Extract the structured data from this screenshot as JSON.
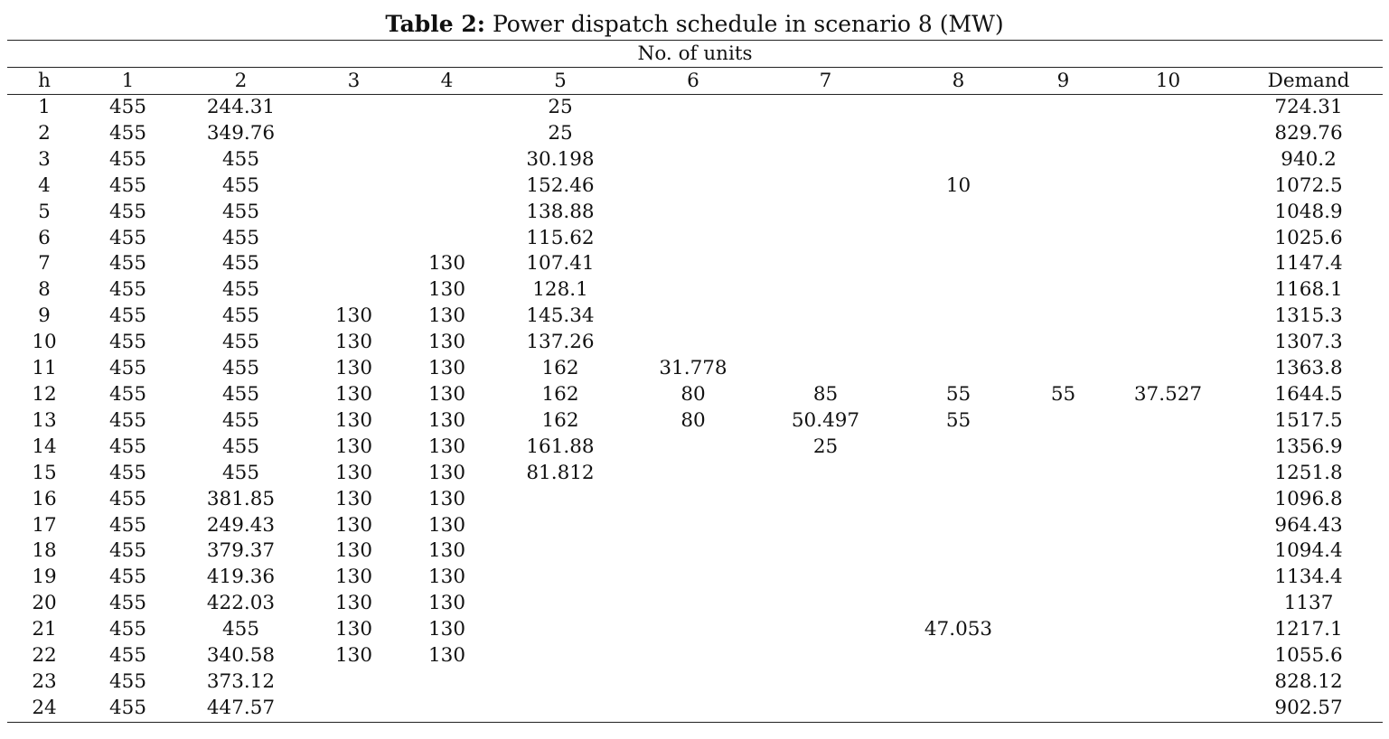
{
  "caption": {
    "label": "Table 2:",
    "text": " Power dispatch schedule in scenario 8 (MW)"
  },
  "table": {
    "group_header": "No. of units",
    "columns": [
      "h",
      "1",
      "2",
      "3",
      "4",
      "5",
      "6",
      "7",
      "8",
      "9",
      "10",
      "Demand"
    ],
    "rows": [
      [
        "1",
        "455",
        "244.31",
        "",
        "",
        "25",
        "",
        "",
        "",
        "",
        "",
        "724.31"
      ],
      [
        "2",
        "455",
        "349.76",
        "",
        "",
        "25",
        "",
        "",
        "",
        "",
        "",
        "829.76"
      ],
      [
        "3",
        "455",
        "455",
        "",
        "",
        "30.198",
        "",
        "",
        "",
        "",
        "",
        "940.2"
      ],
      [
        "4",
        "455",
        "455",
        "",
        "",
        "152.46",
        "",
        "",
        "10",
        "",
        "",
        "1072.5"
      ],
      [
        "5",
        "455",
        "455",
        "",
        "",
        "138.88",
        "",
        "",
        "",
        "",
        "",
        "1048.9"
      ],
      [
        "6",
        "455",
        "455",
        "",
        "",
        "115.62",
        "",
        "",
        "",
        "",
        "",
        "1025.6"
      ],
      [
        "7",
        "455",
        "455",
        "",
        "130",
        "107.41",
        "",
        "",
        "",
        "",
        "",
        "1147.4"
      ],
      [
        "8",
        "455",
        "455",
        "",
        "130",
        "128.1",
        "",
        "",
        "",
        "",
        "",
        "1168.1"
      ],
      [
        "9",
        "455",
        "455",
        "130",
        "130",
        "145.34",
        "",
        "",
        "",
        "",
        "",
        "1315.3"
      ],
      [
        "10",
        "455",
        "455",
        "130",
        "130",
        "137.26",
        "",
        "",
        "",
        "",
        "",
        "1307.3"
      ],
      [
        "11",
        "455",
        "455",
        "130",
        "130",
        "162",
        "31.778",
        "",
        "",
        "",
        "",
        "1363.8"
      ],
      [
        "12",
        "455",
        "455",
        "130",
        "130",
        "162",
        "80",
        "85",
        "55",
        "55",
        "37.527",
        "1644.5"
      ],
      [
        "13",
        "455",
        "455",
        "130",
        "130",
        "162",
        "80",
        "50.497",
        "55",
        "",
        "",
        "1517.5"
      ],
      [
        "14",
        "455",
        "455",
        "130",
        "130",
        "161.88",
        "",
        "25",
        "",
        "",
        "",
        "1356.9"
      ],
      [
        "15",
        "455",
        "455",
        "130",
        "130",
        "81.812",
        "",
        "",
        "",
        "",
        "",
        "1251.8"
      ],
      [
        "16",
        "455",
        "381.85",
        "130",
        "130",
        "",
        "",
        "",
        "",
        "",
        "",
        "1096.8"
      ],
      [
        "17",
        "455",
        "249.43",
        "130",
        "130",
        "",
        "",
        "",
        "",
        "",
        "",
        "964.43"
      ],
      [
        "18",
        "455",
        "379.37",
        "130",
        "130",
        "",
        "",
        "",
        "",
        "",
        "",
        "1094.4"
      ],
      [
        "19",
        "455",
        "419.36",
        "130",
        "130",
        "",
        "",
        "",
        "",
        "",
        "",
        "1134.4"
      ],
      [
        "20",
        "455",
        "422.03",
        "130",
        "130",
        "",
        "",
        "",
        "",
        "",
        "",
        "1137"
      ],
      [
        "21",
        "455",
        "455",
        "130",
        "130",
        "",
        "",
        "",
        "47.053",
        "",
        "",
        "1217.1"
      ],
      [
        "22",
        "455",
        "340.58",
        "130",
        "130",
        "",
        "",
        "",
        "",
        "",
        "",
        "1055.6"
      ],
      [
        "23",
        "455",
        "373.12",
        "",
        "",
        "",
        "",
        "",
        "",
        "",
        "",
        "828.12"
      ],
      [
        "24",
        "455",
        "447.57",
        "",
        "",
        "",
        "",
        "",
        "",
        "",
        "",
        "902.57"
      ]
    ]
  }
}
